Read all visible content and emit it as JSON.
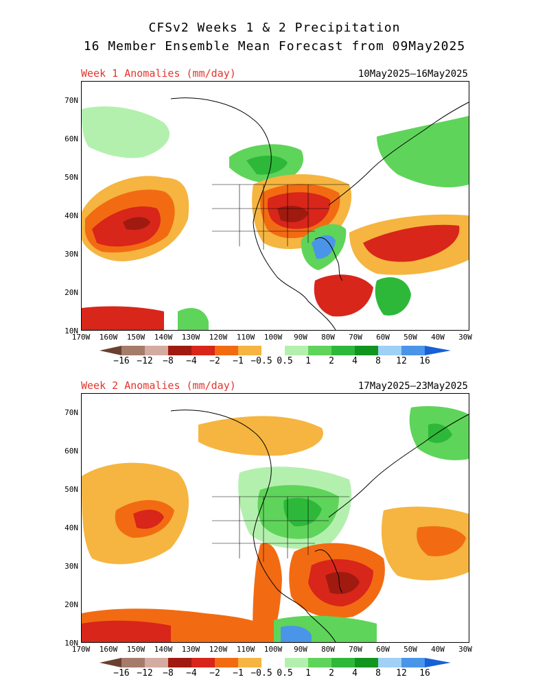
{
  "title_line1": "CFSv2 Weeks 1 & 2 Precipitation",
  "title_line2": "16 Member Ensemble Mean Forecast from 09May2025",
  "panels": [
    {
      "label": "Week 1 Anomalies (mm/day)",
      "dates": "10May2025–16May2025",
      "y_labels": [
        "70N",
        "60N",
        "50N",
        "40N",
        "30N",
        "20N",
        "10N"
      ],
      "x_labels": [
        "170W",
        "160W",
        "150W",
        "140W",
        "130W",
        "120W",
        "110W",
        "100W",
        "90W",
        "80W",
        "70W",
        "60W",
        "50W",
        "40W",
        "30W"
      ]
    },
    {
      "label": "Week 2 Anomalies (mm/day)",
      "dates": "17May2025–23May2025",
      "y_labels": [
        "70N",
        "60N",
        "50N",
        "40N",
        "30N",
        "20N",
        "10N"
      ],
      "x_labels": [
        "170W",
        "160W",
        "150W",
        "140W",
        "130W",
        "120W",
        "110W",
        "100W",
        "90W",
        "80W",
        "70W",
        "60W",
        "50W",
        "40W",
        "30W"
      ]
    }
  ],
  "colorbar": {
    "labels": [
      "−16",
      "−12",
      "−8",
      "−4",
      "−2",
      "−1",
      "−0.5",
      "0.5",
      "1",
      "2",
      "4",
      "8",
      "12",
      "16"
    ],
    "colors": [
      "#6b4030",
      "#a57b6b",
      "#d4aba0",
      "#a01a10",
      "#d8261a",
      "#f26b12",
      "#f5b540",
      "#ffffff",
      "#b3f0ae",
      "#5fd45a",
      "#2eb83a",
      "#11951f",
      "#9fd0f5",
      "#4a95e8",
      "#1660d8"
    ]
  },
  "colors": {
    "title_red": "#e4332b",
    "dry_light": "#f5b540",
    "dry_orange": "#f26b12",
    "dry_red": "#d8261a",
    "dry_dark": "#a01a10",
    "wet_light": "#b3f0ae",
    "wet_mid": "#5fd45a",
    "wet_green": "#2eb83a",
    "wet_dark": "#11951f",
    "wet_blue": "#4a95e8"
  }
}
